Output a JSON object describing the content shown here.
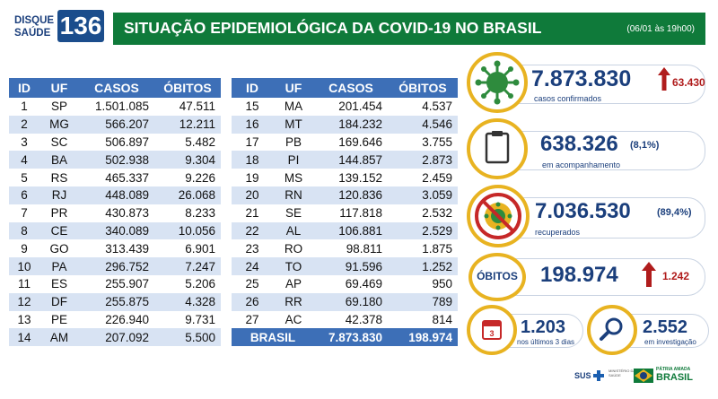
{
  "header": {
    "logo_line1": "DISQUE",
    "logo_line2": "SAÚDE",
    "logo_number": "136",
    "title": "SITUAÇÃO EPIDEMIOLÓGICA DA COVID-19 NO BRASIL",
    "date": "(06/01 às 19h00)"
  },
  "table": {
    "columns": [
      "ID",
      "UF",
      "CASOS",
      "ÓBITOS"
    ],
    "left_rows": [
      {
        "id": "1",
        "uf": "SP",
        "casos": "1.501.085",
        "obitos": "47.511"
      },
      {
        "id": "2",
        "uf": "MG",
        "casos": "566.207",
        "obitos": "12.211"
      },
      {
        "id": "3",
        "uf": "SC",
        "casos": "506.897",
        "obitos": "5.482"
      },
      {
        "id": "4",
        "uf": "BA",
        "casos": "502.938",
        "obitos": "9.304"
      },
      {
        "id": "5",
        "uf": "RS",
        "casos": "465.337",
        "obitos": "9.226"
      },
      {
        "id": "6",
        "uf": "RJ",
        "casos": "448.089",
        "obitos": "26.068"
      },
      {
        "id": "7",
        "uf": "PR",
        "casos": "430.873",
        "obitos": "8.233"
      },
      {
        "id": "8",
        "uf": "CE",
        "casos": "340.089",
        "obitos": "10.056"
      },
      {
        "id": "9",
        "uf": "GO",
        "casos": "313.439",
        "obitos": "6.901"
      },
      {
        "id": "10",
        "uf": "PA",
        "casos": "296.752",
        "obitos": "7.247"
      },
      {
        "id": "11",
        "uf": "ES",
        "casos": "255.907",
        "obitos": "5.206"
      },
      {
        "id": "12",
        "uf": "DF",
        "casos": "255.875",
        "obitos": "4.328"
      },
      {
        "id": "13",
        "uf": "PE",
        "casos": "226.940",
        "obitos": "9.731"
      },
      {
        "id": "14",
        "uf": "AM",
        "casos": "207.092",
        "obitos": "5.500"
      }
    ],
    "right_rows": [
      {
        "id": "15",
        "uf": "MA",
        "casos": "201.454",
        "obitos": "4.537"
      },
      {
        "id": "16",
        "uf": "MT",
        "casos": "184.232",
        "obitos": "4.546"
      },
      {
        "id": "17",
        "uf": "PB",
        "casos": "169.646",
        "obitos": "3.755"
      },
      {
        "id": "18",
        "uf": "PI",
        "casos": "144.857",
        "obitos": "2.873"
      },
      {
        "id": "19",
        "uf": "MS",
        "casos": "139.152",
        "obitos": "2.459"
      },
      {
        "id": "20",
        "uf": "RN",
        "casos": "120.836",
        "obitos": "3.059"
      },
      {
        "id": "21",
        "uf": "SE",
        "casos": "117.818",
        "obitos": "2.532"
      },
      {
        "id": "22",
        "uf": "AL",
        "casos": "106.881",
        "obitos": "2.529"
      },
      {
        "id": "23",
        "uf": "RO",
        "casos": "98.811",
        "obitos": "1.875"
      },
      {
        "id": "24",
        "uf": "TO",
        "casos": "91.596",
        "obitos": "1.252"
      },
      {
        "id": "25",
        "uf": "AP",
        "casos": "69.469",
        "obitos": "950"
      },
      {
        "id": "26",
        "uf": "RR",
        "casos": "69.180",
        "obitos": "789"
      },
      {
        "id": "27",
        "uf": "AC",
        "casos": "42.378",
        "obitos": "814"
      }
    ],
    "total": {
      "label": "BRASIL",
      "casos": "7.873.830",
      "obitos": "198.974"
    }
  },
  "stats": {
    "confirmados": {
      "value": "7.873.830",
      "increase": "63.430",
      "label": "casos confirmados"
    },
    "acompanhamento": {
      "value": "638.326",
      "pct": "(8,1%)",
      "label": "em acompanhamento"
    },
    "recuperados": {
      "value": "7.036.530",
      "pct": "(89,4%)",
      "label": "recuperados"
    },
    "obitos": {
      "badge": "ÓBITOS",
      "value": "198.974",
      "increase": "1.242"
    },
    "ultimos3dias": {
      "value": "1.203",
      "label": "nos últimos 3 dias"
    },
    "investigacao": {
      "value": "2.552",
      "label": "em investigação"
    }
  },
  "footer": {
    "sus": "SUS",
    "ministerio": "MINISTÉRIO DA SAÚDE",
    "patria": "PÁTRIA AMADA",
    "brasil": "BRASIL"
  },
  "colors": {
    "accent_green": "#0f7a3a",
    "table_blue": "#3d6fb7",
    "circle_gold": "#e8b321",
    "increase_red": "#b01c1c",
    "text_navy": "#1b3f7c"
  },
  "icons": [
    "virus-icon",
    "clipboard-icon",
    "recovered-virus-icon",
    "calendar-icon",
    "magnifier-icon",
    "arrow-up-icon"
  ]
}
